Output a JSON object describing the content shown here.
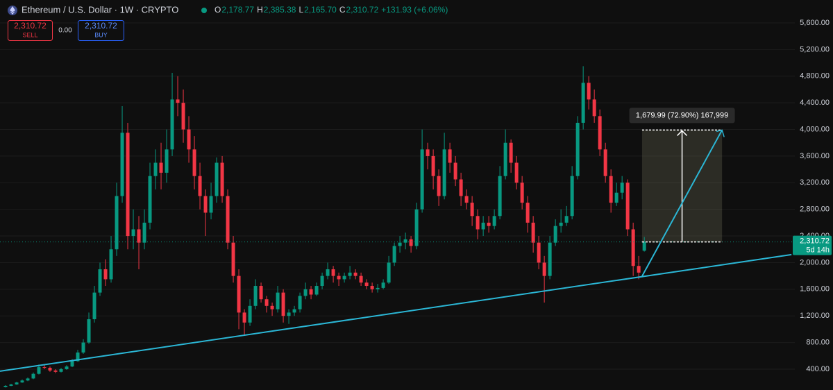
{
  "header": {
    "symbol": "Ethereum / U.S. Dollar · 1W · CRYPTO",
    "ohlc": [
      {
        "key": "O",
        "value": "2,178.77"
      },
      {
        "key": "H",
        "value": "2,385.38"
      },
      {
        "key": "L",
        "value": "2,165.70"
      },
      {
        "key": "C",
        "value": "2,310.72"
      }
    ],
    "change": "+131.93 (+6.06%)"
  },
  "trade": {
    "sell_price": "2,310.72",
    "sell": "SELL",
    "spread": "0.00",
    "buy_price": "2,310.72",
    "buy": "BUY"
  },
  "chart_data": {
    "type": "candlestick",
    "up_color": "#089981",
    "down_color": "#f23645",
    "xlim": [
      -1,
      142.1
    ],
    "ylim": [
      87,
      5944
    ],
    "yticks": [
      {
        "value": 400,
        "label": "400.00"
      },
      {
        "value": 800,
        "label": "800.00"
      },
      {
        "value": 1200,
        "label": "1,200.00"
      },
      {
        "value": 1600,
        "label": "1,600.00"
      },
      {
        "value": 2000,
        "label": "2,000.00"
      },
      {
        "value": 2400,
        "label": "2,400.00"
      },
      {
        "value": 2800,
        "label": "2,800.00"
      },
      {
        "value": 3200,
        "label": "3,200.00"
      },
      {
        "value": 3600,
        "label": "3,600.00"
      },
      {
        "value": 4000,
        "label": "4,000.00"
      },
      {
        "value": 4400,
        "label": "4,400.00"
      },
      {
        "value": 4800,
        "label": "4,800.00"
      },
      {
        "value": 5200,
        "label": "5,200.00"
      },
      {
        "value": 5600,
        "label": "5,600.00"
      }
    ],
    "grid": true,
    "last_price": {
      "value": 2310.72,
      "label": "2,310.72"
    },
    "countdown": "5d 14h",
    "trendline": {
      "x": [
        -1,
        141.5
      ],
      "y": [
        369,
        2120
      ],
      "color": "#2bb7d6"
    },
    "projection": {
      "x": [
        114.6,
        129
      ],
      "y": [
        1797,
        3990.71
      ],
      "color": "#2bb7d6"
    },
    "long_position": {
      "x": [
        114.6,
        129
      ],
      "entry": 2310.72,
      "target": 3990.71,
      "label": "1,679.99 (72.90%) 167,999"
    },
    "candles": [
      [
        130,
        160,
        125,
        150
      ],
      [
        150,
        180,
        145,
        170
      ],
      [
        170,
        210,
        165,
        200
      ],
      [
        200,
        245,
        195,
        230
      ],
      [
        230,
        275,
        220,
        260
      ],
      [
        260,
        350,
        250,
        330
      ],
      [
        330,
        470,
        320,
        430
      ],
      [
        430,
        460,
        400,
        420
      ],
      [
        420,
        440,
        360,
        380
      ],
      [
        380,
        400,
        340,
        360
      ],
      [
        360,
        420,
        350,
        400
      ],
      [
        400,
        460,
        390,
        440
      ],
      [
        440,
        550,
        430,
        520
      ],
      [
        520,
        690,
        510,
        650
      ],
      [
        650,
        850,
        630,
        800
      ],
      [
        800,
        1250,
        780,
        1150
      ],
      [
        1150,
        1650,
        1100,
        1550
      ],
      [
        1550,
        2000,
        1500,
        1900
      ],
      [
        1900,
        2050,
        1650,
        1750
      ],
      [
        1750,
        2400,
        1700,
        2200
      ],
      [
        2200,
        3200,
        2100,
        3000
      ],
      [
        3000,
        4350,
        2900,
        3950
      ],
      [
        3950,
        4100,
        2200,
        2400
      ],
      [
        2400,
        2800,
        2200,
        2500
      ],
      [
        2500,
        2700,
        1900,
        2300
      ],
      [
        2300,
        2800,
        2200,
        2600
      ],
      [
        2600,
        3500,
        2500,
        3300
      ],
      [
        3300,
        3700,
        3100,
        3500
      ],
      [
        3500,
        3800,
        3100,
        3350
      ],
      [
        3350,
        4000,
        3200,
        3700
      ],
      [
        3700,
        4850,
        3600,
        4450
      ],
      [
        4450,
        4800,
        4200,
        4400
      ],
      [
        4400,
        4600,
        3800,
        4000
      ],
      [
        4000,
        4200,
        3500,
        3700
      ],
      [
        3700,
        3900,
        3100,
        3300
      ],
      [
        3300,
        3500,
        2800,
        3000
      ],
      [
        3000,
        3100,
        2400,
        2750
      ],
      [
        2750,
        3200,
        2650,
        3000
      ],
      [
        3000,
        3580,
        2900,
        3500
      ],
      [
        3500,
        3600,
        2900,
        3000
      ],
      [
        3000,
        3100,
        2200,
        2300
      ],
      [
        2300,
        2400,
        1700,
        1800
      ],
      [
        1800,
        1900,
        1000,
        1250
      ],
      [
        1250,
        1300,
        900,
        1100
      ],
      [
        1100,
        1450,
        1050,
        1350
      ],
      [
        1350,
        1750,
        1300,
        1650
      ],
      [
        1650,
        1700,
        1400,
        1450
      ],
      [
        1450,
        1500,
        1250,
        1350
      ],
      [
        1350,
        1400,
        1200,
        1300
      ],
      [
        1300,
        1650,
        1250,
        1550
      ],
      [
        1550,
        1600,
        1100,
        1200
      ],
      [
        1200,
        1300,
        1080,
        1250
      ],
      [
        1250,
        1350,
        1200,
        1300
      ],
      [
        1300,
        1550,
        1250,
        1500
      ],
      [
        1500,
        1700,
        1450,
        1600
      ],
      [
        1600,
        1650,
        1450,
        1520
      ],
      [
        1520,
        1700,
        1500,
        1650
      ],
      [
        1650,
        1850,
        1600,
        1800
      ],
      [
        1800,
        2000,
        1750,
        1900
      ],
      [
        1900,
        1950,
        1700,
        1800
      ],
      [
        1800,
        1850,
        1650,
        1750
      ],
      [
        1750,
        1850,
        1700,
        1800
      ],
      [
        1800,
        1950,
        1750,
        1850
      ],
      [
        1850,
        1900,
        1750,
        1800
      ],
      [
        1800,
        1850,
        1650,
        1700
      ],
      [
        1700,
        1750,
        1600,
        1650
      ],
      [
        1650,
        1700,
        1550,
        1600
      ],
      [
        1600,
        1680,
        1550,
        1620
      ],
      [
        1620,
        1750,
        1600,
        1700
      ],
      [
        1700,
        2100,
        1680,
        2000
      ],
      [
        2000,
        2300,
        1950,
        2250
      ],
      [
        2250,
        2400,
        2150,
        2300
      ],
      [
        2300,
        2450,
        2200,
        2350
      ],
      [
        2350,
        2400,
        2150,
        2250
      ],
      [
        2250,
        2900,
        2200,
        2800
      ],
      [
        2800,
        4000,
        2750,
        3700
      ],
      [
        3700,
        3800,
        3400,
        3600
      ],
      [
        3600,
        3700,
        3100,
        3300
      ],
      [
        3300,
        3400,
        2850,
        3000
      ],
      [
        3000,
        3950,
        2950,
        3700
      ],
      [
        3700,
        3800,
        3350,
        3500
      ],
      [
        3500,
        3600,
        3150,
        3250
      ],
      [
        3250,
        3350,
        2850,
        3000
      ],
      [
        3000,
        3100,
        2800,
        2900
      ],
      [
        2900,
        3000,
        2550,
        2700
      ],
      [
        2700,
        2800,
        2350,
        2500
      ],
      [
        2500,
        2700,
        2400,
        2600
      ],
      [
        2600,
        2700,
        2450,
        2550
      ],
      [
        2550,
        2800,
        2500,
        2700
      ],
      [
        2700,
        3450,
        2650,
        3300
      ],
      [
        3300,
        4000,
        3250,
        3800
      ],
      [
        3800,
        3850,
        3350,
        3500
      ],
      [
        3500,
        3600,
        3100,
        3200
      ],
      [
        3200,
        3300,
        2800,
        2900
      ],
      [
        2900,
        3000,
        2450,
        2600
      ],
      [
        2600,
        2700,
        2150,
        2300
      ],
      [
        2300,
        2400,
        1900,
        2000
      ],
      [
        2000,
        2100,
        1400,
        1800
      ],
      [
        1800,
        2400,
        1750,
        2300
      ],
      [
        2300,
        2650,
        2250,
        2550
      ],
      [
        2550,
        2800,
        2450,
        2600
      ],
      [
        2600,
        2850,
        2550,
        2700
      ],
      [
        2700,
        3450,
        2650,
        3300
      ],
      [
        3300,
        4200,
        3250,
        4100
      ],
      [
        4100,
        4950,
        4000,
        4700
      ],
      [
        4700,
        4800,
        4300,
        4450
      ],
      [
        4450,
        4600,
        4100,
        4200
      ],
      [
        4200,
        4300,
        3600,
        3700
      ],
      [
        3700,
        3800,
        3200,
        3300
      ],
      [
        3300,
        3400,
        2750,
        2900
      ],
      [
        2900,
        3200,
        2850,
        3050
      ],
      [
        3050,
        3300,
        2950,
        3200
      ],
      [
        3200,
        3250,
        2400,
        2500
      ],
      [
        2500,
        2600,
        1800,
        1950
      ],
      [
        1950,
        2100,
        1750,
        1850
      ],
      [
        2178.77,
        2385.38,
        2165.7,
        2310.72
      ]
    ]
  }
}
